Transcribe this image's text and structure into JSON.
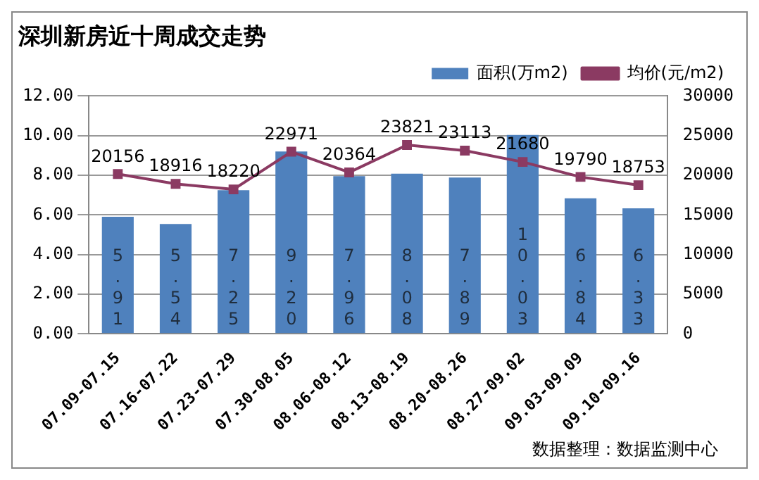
{
  "chart_data": {
    "type": "bar",
    "title": "深圳新房近十周成交走势",
    "categories": [
      "07.09-07.15",
      "07.16-07.22",
      "07.23-07.29",
      "07.30-08.05",
      "08.06-08.12",
      "08.13-08.19",
      "08.20-08.26",
      "08.27-09.02",
      "09.03-09.09",
      "09.10-09.16"
    ],
    "series": [
      {
        "name": "面积(万m2)",
        "color": "#4f81bd",
        "values": [
          5.91,
          5.54,
          7.25,
          9.2,
          7.96,
          8.08,
          7.89,
          10.03,
          6.84,
          6.33
        ],
        "value_labels": [
          "5.91",
          "5.54",
          "7.25",
          "9.20",
          "7.96",
          "8.08",
          "7.89",
          "10.03",
          "6.84",
          "6.33"
        ]
      },
      {
        "type": "line",
        "name": "均价(元/m2)",
        "color": "#8b3a62",
        "axis": "y2",
        "marker": "square",
        "values": [
          20156,
          18916,
          18220,
          22971,
          20364,
          23821,
          23113,
          21680,
          19790,
          18753
        ],
        "value_labels": [
          "20156",
          "18916",
          "18220",
          "22971",
          "20364",
          "23821",
          "23113",
          "21680",
          "19790",
          "18753"
        ]
      }
    ],
    "ylim": [
      0,
      12
    ],
    "yticks": [
      {
        "value": 0,
        "label": "0.00"
      },
      {
        "value": 2,
        "label": "2.00"
      },
      {
        "value": 4,
        "label": "4.00"
      },
      {
        "value": 6,
        "label": "6.00"
      },
      {
        "value": 8,
        "label": "8.00"
      },
      {
        "value": 10,
        "label": "10.00"
      },
      {
        "value": 12,
        "label": "12.00"
      }
    ],
    "y2lim": [
      0,
      30000
    ],
    "y2ticks": [
      0,
      5000,
      10000,
      15000,
      20000,
      25000,
      30000
    ],
    "grid": "y",
    "legend": "top right",
    "annotations": [
      "数据整理：数据监测中心"
    ]
  }
}
